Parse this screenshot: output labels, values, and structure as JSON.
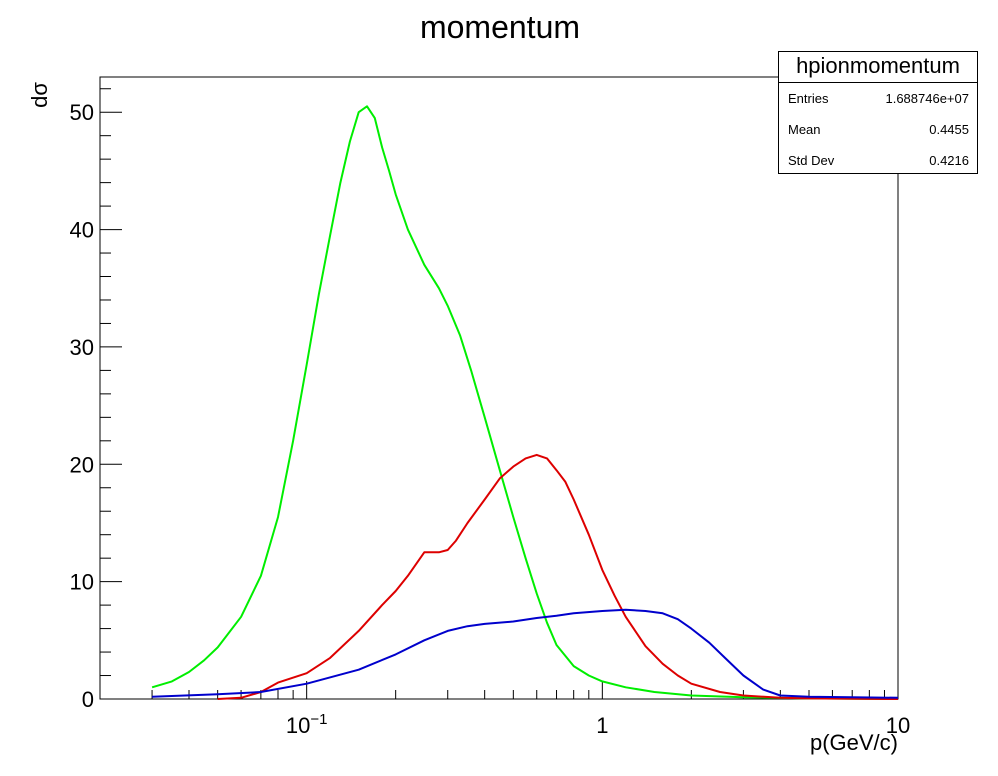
{
  "chart_data": {
    "type": "line",
    "title": "momentum",
    "xlabel": "p(GeV/c)",
    "ylabel": "dσ",
    "xscale": "log",
    "xlim": [
      0.02,
      10
    ],
    "ylim": [
      0,
      53
    ],
    "x_tick_labels": [
      {
        "value": 0.1,
        "label": "10",
        "exponent": "−1"
      },
      {
        "value": 1,
        "label": "1",
        "exponent": ""
      },
      {
        "value": 10,
        "label": "10",
        "exponent": ""
      }
    ],
    "y_ticks": [
      0,
      10,
      20,
      30,
      40,
      50
    ],
    "grid": false,
    "series": [
      {
        "color": "#00ee00",
        "x": [
          0.03,
          0.035,
          0.04,
          0.045,
          0.05,
          0.06,
          0.07,
          0.08,
          0.09,
          0.1,
          0.11,
          0.12,
          0.13,
          0.14,
          0.15,
          0.16,
          0.17,
          0.18,
          0.19,
          0.2,
          0.22,
          0.25,
          0.28,
          0.3,
          0.33,
          0.36,
          0.4,
          0.45,
          0.5,
          0.55,
          0.6,
          0.65,
          0.7,
          0.8,
          0.9,
          1.0,
          1.2,
          1.5,
          2.0,
          3.0,
          5.0,
          10.0
        ],
        "y": [
          1.0,
          1.5,
          2.3,
          3.3,
          4.4,
          7.0,
          10.5,
          15.5,
          22.0,
          28.5,
          34.5,
          39.5,
          44.0,
          47.5,
          50.0,
          50.5,
          49.5,
          47.0,
          45.0,
          43.0,
          40.0,
          37.0,
          35.0,
          33.5,
          31.0,
          28.0,
          24.0,
          19.5,
          15.5,
          12.0,
          9.0,
          6.5,
          4.6,
          2.8,
          2.0,
          1.5,
          1.0,
          0.6,
          0.3,
          0.15,
          0.05,
          0.0
        ]
      },
      {
        "color": "#dd0000",
        "x": [
          0.05,
          0.06,
          0.07,
          0.08,
          0.1,
          0.12,
          0.15,
          0.18,
          0.2,
          0.22,
          0.25,
          0.28,
          0.3,
          0.32,
          0.35,
          0.4,
          0.45,
          0.5,
          0.55,
          0.6,
          0.65,
          0.7,
          0.75,
          0.8,
          0.9,
          1.0,
          1.1,
          1.2,
          1.4,
          1.6,
          1.8,
          2.0,
          2.5,
          3.0,
          4.0,
          5.0,
          10.0
        ],
        "y": [
          0.0,
          0.1,
          0.6,
          1.4,
          2.2,
          3.5,
          5.8,
          8.0,
          9.2,
          10.5,
          12.5,
          12.5,
          12.7,
          13.5,
          15.0,
          17.0,
          18.8,
          19.8,
          20.5,
          20.8,
          20.5,
          19.5,
          18.5,
          17.0,
          14.0,
          11.0,
          8.8,
          7.0,
          4.5,
          3.0,
          2.0,
          1.3,
          0.6,
          0.3,
          0.1,
          0.05,
          0.0
        ]
      },
      {
        "color": "#0000cc",
        "x": [
          0.03,
          0.05,
          0.07,
          0.1,
          0.15,
          0.2,
          0.25,
          0.3,
          0.35,
          0.4,
          0.5,
          0.6,
          0.7,
          0.8,
          1.0,
          1.2,
          1.4,
          1.6,
          1.8,
          2.0,
          2.3,
          2.6,
          3.0,
          3.5,
          4.0,
          5.0,
          7.0,
          10.0
        ],
        "y": [
          0.2,
          0.4,
          0.6,
          1.3,
          2.5,
          3.8,
          5.0,
          5.8,
          6.2,
          6.4,
          6.6,
          6.9,
          7.1,
          7.3,
          7.5,
          7.6,
          7.5,
          7.3,
          6.8,
          6.0,
          4.8,
          3.5,
          2.0,
          0.8,
          0.3,
          0.2,
          0.15,
          0.1
        ]
      }
    ]
  },
  "stats": {
    "name": "hpionmomentum",
    "rows": [
      {
        "label": "Entries",
        "value": "1.688746e+07"
      },
      {
        "label": "Mean",
        "value": "0.4455"
      },
      {
        "label": "Std Dev",
        "value": "0.4216"
      }
    ]
  }
}
